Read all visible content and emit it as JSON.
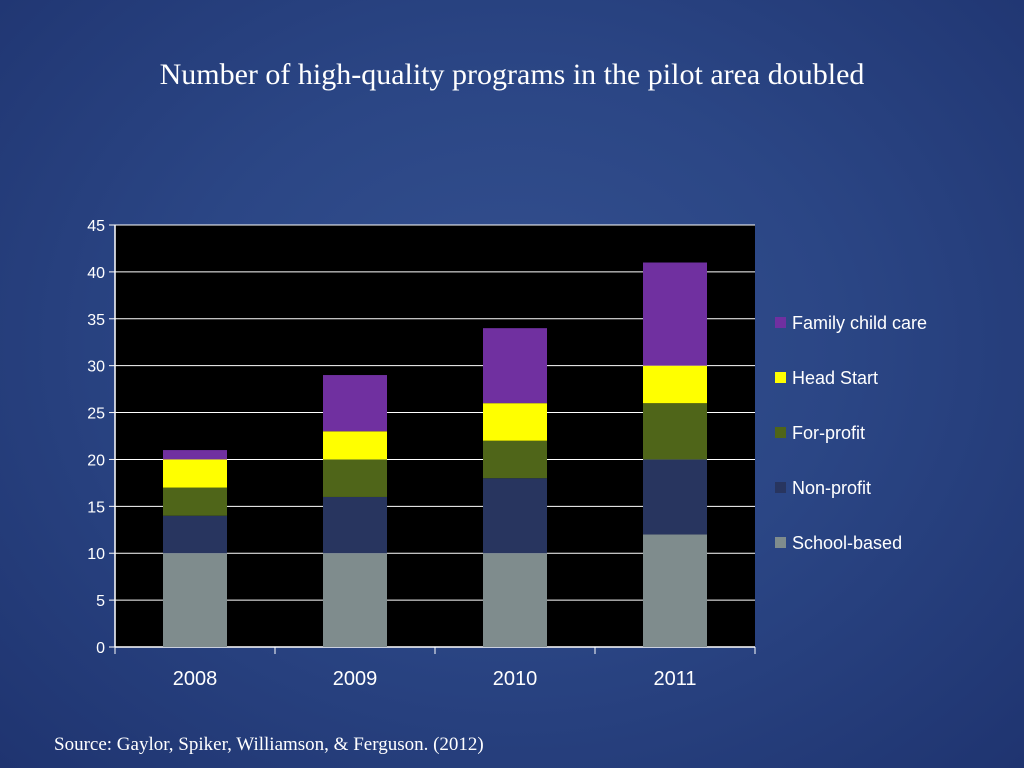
{
  "slide": {
    "title": "Number of high-quality programs in the pilot area doubled",
    "source": "Source: Gaylor, Spiker, Williamson, & Ferguson. (2012)"
  },
  "chart_data": {
    "type": "bar",
    "stacked": true,
    "title": "Number of high-quality programs in the pilot area doubled",
    "xlabel": "",
    "ylabel": "",
    "categories": [
      "2008",
      "2009",
      "2010",
      "2011"
    ],
    "ylim": [
      0,
      45
    ],
    "yticks": [
      0,
      5,
      10,
      15,
      20,
      25,
      30,
      35,
      40,
      45
    ],
    "grid": true,
    "legend_position": "right",
    "plot_background": "#000000",
    "series": [
      {
        "name": "School-based",
        "color": "#7f8c8d",
        "values": [
          10,
          10,
          10,
          12
        ]
      },
      {
        "name": "Non-profit",
        "color": "#28355f",
        "values": [
          4,
          6,
          8,
          8
        ]
      },
      {
        "name": "For-profit",
        "color": "#4f6519",
        "values": [
          3,
          4,
          4,
          6
        ]
      },
      {
        "name": "Head Start",
        "color": "#ffff00",
        "values": [
          3,
          3,
          4,
          4
        ]
      },
      {
        "name": "Family child care",
        "color": "#7030a0",
        "values": [
          1,
          6,
          8,
          11
        ]
      }
    ]
  }
}
